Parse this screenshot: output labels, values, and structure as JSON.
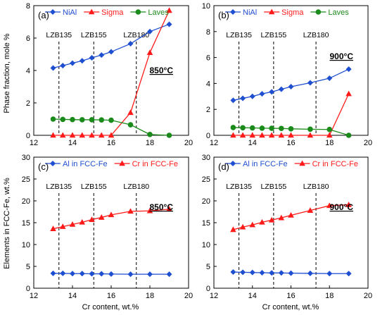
{
  "figure": {
    "shared_ylabel_top": "Phase fraction, mole %",
    "shared_ylabel_bottom": "Elements in FCC-Fe, wt.%",
    "shared_xlabel": "Cr content, wt.%"
  },
  "chart_data": [
    {
      "type": "line",
      "panel": "(a)",
      "temperature": "850°C",
      "xlim": [
        12,
        20
      ],
      "ylim": [
        0,
        8
      ],
      "xticks": [
        12,
        14,
        16,
        18,
        20
      ],
      "yticks": [
        0,
        2,
        4,
        6,
        8
      ],
      "legend_placement": "top",
      "annotations": [
        {
          "text": "LZB135",
          "x": 13.3
        },
        {
          "text": "LZB155",
          "x": 15.1
        },
        {
          "text": "LZB180",
          "x": 17.3
        }
      ],
      "series": [
        {
          "name": "NiAl",
          "color": "#1f4fd1",
          "marker": "diamond",
          "x": [
            13,
            13.5,
            14,
            14.5,
            15,
            15.5,
            16,
            17,
            18,
            19
          ],
          "y": [
            4.15,
            4.3,
            4.45,
            4.6,
            4.78,
            4.95,
            5.15,
            5.65,
            6.4,
            6.85
          ]
        },
        {
          "name": "Sigma",
          "color": "#ff1a1a",
          "marker": "triangle",
          "x": [
            13,
            13.5,
            14,
            14.5,
            15,
            15.5,
            16,
            17,
            18,
            19
          ],
          "y": [
            0,
            0,
            0,
            0,
            0,
            0,
            0,
            1.4,
            5.1,
            7.7
          ]
        },
        {
          "name": "Laves",
          "color": "#1a8a1a",
          "marker": "circle",
          "x": [
            13,
            13.5,
            14,
            14.5,
            15,
            15.5,
            16,
            17,
            18,
            19
          ],
          "y": [
            1.0,
            0.98,
            0.97,
            0.96,
            0.96,
            0.95,
            0.93,
            0.65,
            0.05,
            0.0
          ]
        }
      ]
    },
    {
      "type": "line",
      "panel": "(b)",
      "temperature": "900°C",
      "xlim": [
        12,
        20
      ],
      "ylim": [
        0,
        10
      ],
      "xticks": [
        12,
        14,
        16,
        18,
        20
      ],
      "yticks": [
        0,
        2,
        4,
        6,
        8,
        10
      ],
      "legend_placement": "top",
      "annotations": [
        {
          "text": "LZB135",
          "x": 13.3
        },
        {
          "text": "LZB155",
          "x": 15.1
        },
        {
          "text": "LZB180",
          "x": 17.3
        }
      ],
      "series": [
        {
          "name": "NiAl",
          "color": "#1f4fd1",
          "marker": "diamond",
          "x": [
            13,
            13.5,
            14,
            14.5,
            15,
            15.5,
            16,
            17,
            18,
            19
          ],
          "y": [
            2.7,
            2.85,
            3.0,
            3.2,
            3.35,
            3.55,
            3.75,
            4.05,
            4.4,
            5.1
          ]
        },
        {
          "name": "Sigma",
          "color": "#ff1a1a",
          "marker": "triangle",
          "x": [
            13,
            13.5,
            14,
            14.5,
            15,
            15.5,
            16,
            17,
            18,
            19
          ],
          "y": [
            0,
            0,
            0,
            0,
            0,
            0,
            0,
            0,
            0,
            3.2
          ]
        },
        {
          "name": "Laves",
          "color": "#1a8a1a",
          "marker": "circle",
          "x": [
            13,
            13.5,
            14,
            14.5,
            15,
            15.5,
            16,
            17,
            18,
            19
          ],
          "y": [
            0.6,
            0.58,
            0.57,
            0.55,
            0.54,
            0.53,
            0.5,
            0.47,
            0.45,
            0.0
          ]
        }
      ]
    },
    {
      "type": "line",
      "panel": "(c)",
      "temperature": "850°C",
      "xlim": [
        12,
        20
      ],
      "ylim": [
        0,
        30
      ],
      "xticks": [
        12,
        14,
        16,
        18,
        20
      ],
      "yticks": [
        0,
        5,
        10,
        15,
        20,
        25,
        30
      ],
      "legend_placement": "top",
      "annotations": [
        {
          "text": "LZB135",
          "x": 13.3
        },
        {
          "text": "LZB155",
          "x": 15.1
        },
        {
          "text": "LZB180",
          "x": 17.3
        }
      ],
      "series": [
        {
          "name": "Al in FCC-Fe",
          "color": "#1f4fd1",
          "marker": "diamond",
          "x": [
            13,
            13.5,
            14,
            14.5,
            15,
            15.5,
            16,
            17,
            18,
            19
          ],
          "y": [
            3.4,
            3.4,
            3.35,
            3.35,
            3.3,
            3.3,
            3.25,
            3.2,
            3.2,
            3.2
          ]
        },
        {
          "name": "Cr in FCC-Fe",
          "color": "#ff1a1a",
          "marker": "triangle",
          "x": [
            13,
            13.5,
            14,
            14.5,
            15,
            15.5,
            16,
            17,
            18,
            19
          ],
          "y": [
            13.6,
            14.1,
            14.6,
            15.1,
            15.7,
            16.2,
            16.8,
            17.6,
            17.7,
            18.1
          ]
        }
      ]
    },
    {
      "type": "line",
      "panel": "(d)",
      "temperature": "900°C",
      "xlim": [
        12,
        20
      ],
      "ylim": [
        0,
        30
      ],
      "xticks": [
        12,
        14,
        16,
        18,
        20
      ],
      "yticks": [
        0,
        5,
        10,
        15,
        20,
        25,
        30
      ],
      "legend_placement": "top",
      "annotations": [
        {
          "text": "LZB135",
          "x": 13.3
        },
        {
          "text": "LZB155",
          "x": 15.1
        },
        {
          "text": "LZB180",
          "x": 17.3
        }
      ],
      "series": [
        {
          "name": "Al in FCC-Fe",
          "color": "#1f4fd1",
          "marker": "diamond",
          "x": [
            13,
            13.5,
            14,
            14.5,
            15,
            15.5,
            16,
            17,
            18,
            19
          ],
          "y": [
            3.7,
            3.65,
            3.6,
            3.55,
            3.5,
            3.5,
            3.45,
            3.4,
            3.35,
            3.35
          ]
        },
        {
          "name": "Cr in FCC-Fe",
          "color": "#ff1a1a",
          "marker": "triangle",
          "x": [
            13,
            13.5,
            14,
            14.5,
            15,
            15.5,
            16,
            17,
            18,
            19
          ],
          "y": [
            13.4,
            14.0,
            14.5,
            15.1,
            15.6,
            16.1,
            16.7,
            17.8,
            18.9,
            19.1
          ]
        }
      ]
    }
  ]
}
